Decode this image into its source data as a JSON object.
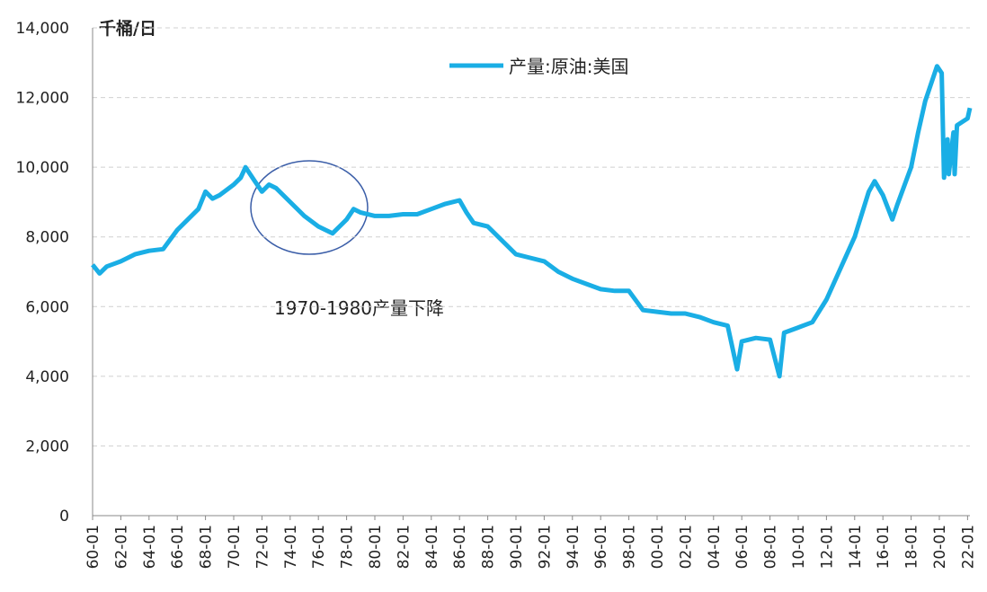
{
  "chart_data": {
    "type": "line",
    "y_axis_label": "千桶/日",
    "annotation": "1970-1980产量下降",
    "x": [
      "60-01",
      "60-07",
      "61-01",
      "62-01",
      "63-01",
      "64-01",
      "65-01",
      "66-01",
      "67-07",
      "68-01",
      "68-07",
      "69-01",
      "70-01",
      "70-07",
      "70-11",
      "71-07",
      "72-01",
      "72-07",
      "73-01",
      "74-01",
      "75-01",
      "76-01",
      "77-01",
      "77-07",
      "78-01",
      "78-07",
      "79-01",
      "80-01",
      "81-01",
      "82-01",
      "83-01",
      "84-01",
      "85-01",
      "86-01",
      "86-07",
      "87-01",
      "88-01",
      "89-01",
      "90-01",
      "91-01",
      "92-01",
      "93-01",
      "94-01",
      "95-01",
      "96-01",
      "97-01",
      "98-01",
      "99-01",
      "00-01",
      "01-01",
      "02-01",
      "03-01",
      "04-01",
      "05-01",
      "05-09",
      "06-01",
      "07-01",
      "08-01",
      "08-09",
      "09-01",
      "10-01",
      "11-01",
      "12-01",
      "13-01",
      "14-01",
      "15-01",
      "15-06",
      "16-01",
      "16-09",
      "17-01",
      "18-01",
      "18-07",
      "19-01",
      "19-11",
      "20-03",
      "20-05",
      "20-08",
      "20-09",
      "21-01",
      "21-02",
      "21-04",
      "22-01",
      "22-03"
    ],
    "series": [
      {
        "name": "产量:原油:美国",
        "color": "#1aaee5",
        "values": [
          7200,
          6950,
          7150,
          7300,
          7500,
          7600,
          7650,
          8200,
          8800,
          9300,
          9100,
          9200,
          9500,
          9700,
          10000,
          9600,
          9300,
          9500,
          9400,
          9000,
          8600,
          8300,
          8100,
          8300,
          8500,
          8800,
          8700,
          8600,
          8600,
          8650,
          8650,
          8800,
          8950,
          9050,
          8700,
          8400,
          8300,
          7900,
          7500,
          7400,
          7300,
          7000,
          6800,
          6650,
          6500,
          6450,
          6450,
          5900,
          5850,
          5800,
          5800,
          5700,
          5550,
          5450,
          4200,
          5000,
          5100,
          5050,
          4000,
          5250,
          5400,
          5550,
          6200,
          7100,
          8000,
          9300,
          9600,
          9200,
          8500,
          8900,
          10000,
          11000,
          11900,
          12900,
          12700,
          9700,
          10800,
          9800,
          11000,
          9800,
          11200,
          11400,
          11700
        ]
      }
    ],
    "xlim": [
      "60-01",
      "22-03"
    ],
    "xticks": [
      "60-01",
      "62-01",
      "64-01",
      "66-01",
      "68-01",
      "70-01",
      "72-01",
      "74-01",
      "76-01",
      "78-01",
      "80-01",
      "82-01",
      "84-01",
      "86-01",
      "88-01",
      "90-01",
      "92-01",
      "94-01",
      "96-01",
      "98-01",
      "00-01",
      "02-01",
      "04-01",
      "06-01",
      "08-01",
      "10-01",
      "12-01",
      "14-01",
      "16-01",
      "18-01",
      "20-01",
      "22-01"
    ],
    "ylim": [
      0,
      14000
    ],
    "yticks": [
      0,
      {
        "value": 2000,
        "label": "2,000"
      },
      {
        "value": 4000,
        "label": "4,000"
      },
      {
        "value": 6000,
        "label": "6,000"
      },
      {
        "value": 8000,
        "label": "8,000"
      },
      {
        "value": 10000,
        "label": "10,000"
      },
      {
        "value": 12000,
        "label": "12,000"
      },
      {
        "value": 14000,
        "label": "14,000"
      }
    ],
    "grid": true
  }
}
